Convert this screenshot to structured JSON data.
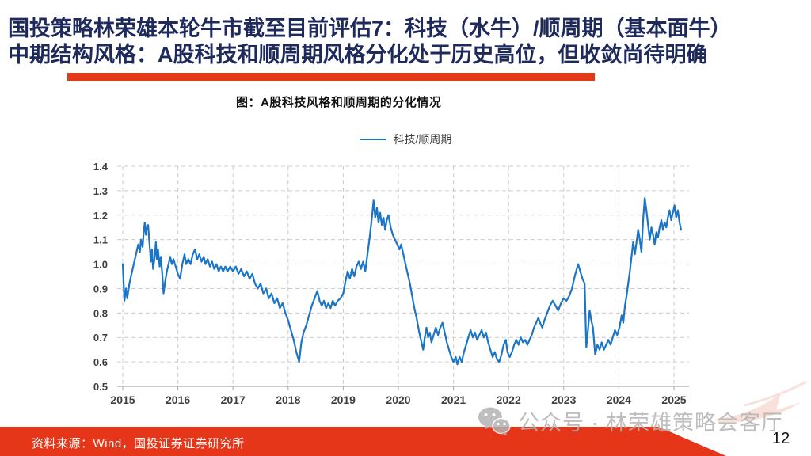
{
  "header": {
    "title_line1": "国投策略林荣雄本轮牛市截至目前评估7：科技（水牛）/顺周期（基本面牛）",
    "title_line2": "中期结构风格：A股科技和顺周期风格分化处于历史高位，但收敛尚待明确",
    "title_color": "#1f2a5c",
    "accent_color": "#e23a18"
  },
  "chart": {
    "title": "图：A股科技风格和顺周期的分化情况"
  },
  "chart_data": {
    "type": "line",
    "title": "图：A股科技风格和顺周期的分化情况",
    "xlabel": "",
    "ylabel": "",
    "xlim": [
      2015,
      2025.3
    ],
    "ylim": [
      0.5,
      1.4
    ],
    "x_ticks": [
      2015,
      2016,
      2017,
      2018,
      2019,
      2020,
      2021,
      2022,
      2023,
      2024,
      2025
    ],
    "y_ticks": [
      0.5,
      0.6,
      0.7,
      0.8,
      0.9,
      1.0,
      1.1,
      1.2,
      1.3,
      1.4
    ],
    "grid": "dashed",
    "legend_position": "top-center",
    "series": [
      {
        "name": "科技/顺周期",
        "color": "#1c75c4",
        "points": [
          [
            2015.0,
            1.0
          ],
          [
            2015.03,
            0.85
          ],
          [
            2015.06,
            0.9
          ],
          [
            2015.08,
            0.86
          ],
          [
            2015.12,
            0.92
          ],
          [
            2015.16,
            0.96
          ],
          [
            2015.2,
            1.0
          ],
          [
            2015.24,
            1.04
          ],
          [
            2015.28,
            1.08
          ],
          [
            2015.31,
            1.05
          ],
          [
            2015.33,
            1.1
          ],
          [
            2015.36,
            1.07
          ],
          [
            2015.38,
            1.13
          ],
          [
            2015.4,
            1.17
          ],
          [
            2015.42,
            1.12
          ],
          [
            2015.44,
            1.15
          ],
          [
            2015.46,
            1.16
          ],
          [
            2015.48,
            1.1
          ],
          [
            2015.51,
            1.01
          ],
          [
            2015.53,
            1.06
          ],
          [
            2015.55,
            0.98
          ],
          [
            2015.58,
            1.03
          ],
          [
            2015.6,
            1.09
          ],
          [
            2015.62,
            1.02
          ],
          [
            2015.64,
            1.06
          ],
          [
            2015.67,
            0.99
          ],
          [
            2015.69,
            1.03
          ],
          [
            2015.72,
            0.95
          ],
          [
            2015.74,
            0.88
          ],
          [
            2015.77,
            0.93
          ],
          [
            2015.8,
            0.97
          ],
          [
            2015.83,
            1.0
          ],
          [
            2015.86,
            1.03
          ],
          [
            2015.89,
            1.0
          ],
          [
            2015.92,
            1.02
          ],
          [
            2015.96,
            0.99
          ],
          [
            2016.0,
            0.96
          ],
          [
            2016.04,
            0.94
          ],
          [
            2016.08,
            1.0
          ],
          [
            2016.12,
            1.04
          ],
          [
            2016.15,
            1.0
          ],
          [
            2016.19,
            1.02
          ],
          [
            2016.23,
            1.0
          ],
          [
            2016.27,
            1.04
          ],
          [
            2016.31,
            1.06
          ],
          [
            2016.35,
            1.02
          ],
          [
            2016.39,
            1.04
          ],
          [
            2016.43,
            1.01
          ],
          [
            2016.47,
            1.03
          ],
          [
            2016.5,
            1.0
          ],
          [
            2016.54,
            1.02
          ],
          [
            2016.58,
            0.99
          ],
          [
            2016.62,
            1.01
          ],
          [
            2016.66,
            0.98
          ],
          [
            2016.7,
            1.0
          ],
          [
            2016.74,
            0.97
          ],
          [
            2016.78,
            0.99
          ],
          [
            2016.82,
            0.97
          ],
          [
            2016.86,
            0.99
          ],
          [
            2016.9,
            0.97
          ],
          [
            2016.95,
            0.99
          ],
          [
            2017.0,
            0.97
          ],
          [
            2017.05,
            0.99
          ],
          [
            2017.1,
            0.96
          ],
          [
            2017.15,
            0.98
          ],
          [
            2017.2,
            0.95
          ],
          [
            2017.25,
            0.97
          ],
          [
            2017.3,
            0.94
          ],
          [
            2017.35,
            0.96
          ],
          [
            2017.4,
            0.92
          ],
          [
            2017.45,
            0.9
          ],
          [
            2017.5,
            0.92
          ],
          [
            2017.55,
            0.88
          ],
          [
            2017.6,
            0.9
          ],
          [
            2017.65,
            0.86
          ],
          [
            2017.7,
            0.88
          ],
          [
            2017.75,
            0.84
          ],
          [
            2017.8,
            0.86
          ],
          [
            2017.85,
            0.82
          ],
          [
            2017.9,
            0.84
          ],
          [
            2017.95,
            0.8
          ],
          [
            2018.0,
            0.77
          ],
          [
            2018.05,
            0.73
          ],
          [
            2018.1,
            0.69
          ],
          [
            2018.15,
            0.64
          ],
          [
            2018.2,
            0.6
          ],
          [
            2018.24,
            0.68
          ],
          [
            2018.28,
            0.72
          ],
          [
            2018.33,
            0.75
          ],
          [
            2018.38,
            0.79
          ],
          [
            2018.43,
            0.83
          ],
          [
            2018.48,
            0.86
          ],
          [
            2018.53,
            0.89
          ],
          [
            2018.57,
            0.85
          ],
          [
            2018.61,
            0.83
          ],
          [
            2018.65,
            0.85
          ],
          [
            2018.69,
            0.82
          ],
          [
            2018.73,
            0.84
          ],
          [
            2018.77,
            0.82
          ],
          [
            2018.81,
            0.85
          ],
          [
            2018.85,
            0.83
          ],
          [
            2018.9,
            0.85
          ],
          [
            2018.95,
            0.86
          ],
          [
            2019.0,
            0.88
          ],
          [
            2019.04,
            0.93
          ],
          [
            2019.08,
            0.97
          ],
          [
            2019.12,
            0.94
          ],
          [
            2019.16,
            0.98
          ],
          [
            2019.2,
            0.95
          ],
          [
            2019.24,
            0.99
          ],
          [
            2019.28,
            1.01
          ],
          [
            2019.32,
            0.98
          ],
          [
            2019.36,
            1.01
          ],
          [
            2019.4,
            0.97
          ],
          [
            2019.44,
            1.04
          ],
          [
            2019.48,
            1.11
          ],
          [
            2019.52,
            1.19
          ],
          [
            2019.55,
            1.26
          ],
          [
            2019.58,
            1.19
          ],
          [
            2019.61,
            1.23
          ],
          [
            2019.64,
            1.17
          ],
          [
            2019.67,
            1.21
          ],
          [
            2019.7,
            1.16
          ],
          [
            2019.73,
            1.19
          ],
          [
            2019.76,
            1.14
          ],
          [
            2019.79,
            1.18
          ],
          [
            2019.82,
            1.2
          ],
          [
            2019.86,
            1.15
          ],
          [
            2019.9,
            1.12
          ],
          [
            2019.94,
            1.1
          ],
          [
            2019.98,
            1.08
          ],
          [
            2020.02,
            1.06
          ],
          [
            2020.05,
            1.08
          ],
          [
            2020.09,
            1.04
          ],
          [
            2020.13,
            1.0
          ],
          [
            2020.17,
            0.96
          ],
          [
            2020.21,
            0.92
          ],
          [
            2020.25,
            0.87
          ],
          [
            2020.29,
            0.82
          ],
          [
            2020.33,
            0.78
          ],
          [
            2020.37,
            0.73
          ],
          [
            2020.41,
            0.69
          ],
          [
            2020.45,
            0.65
          ],
          [
            2020.48,
            0.7
          ],
          [
            2020.51,
            0.74
          ],
          [
            2020.54,
            0.7
          ],
          [
            2020.57,
            0.72
          ],
          [
            2020.6,
            0.68
          ],
          [
            2020.64,
            0.71
          ],
          [
            2020.68,
            0.74
          ],
          [
            2020.72,
            0.71
          ],
          [
            2020.76,
            0.74
          ],
          [
            2020.8,
            0.76
          ],
          [
            2020.84,
            0.72
          ],
          [
            2020.88,
            0.68
          ],
          [
            2020.92,
            0.65
          ],
          [
            2020.96,
            0.62
          ],
          [
            2021.0,
            0.6
          ],
          [
            2021.04,
            0.62
          ],
          [
            2021.07,
            0.59
          ],
          [
            2021.11,
            0.62
          ],
          [
            2021.15,
            0.6
          ],
          [
            2021.19,
            0.64
          ],
          [
            2021.23,
            0.67
          ],
          [
            2021.27,
            0.7
          ],
          [
            2021.31,
            0.73
          ],
          [
            2021.35,
            0.7
          ],
          [
            2021.39,
            0.72
          ],
          [
            2021.43,
            0.69
          ],
          [
            2021.47,
            0.71
          ],
          [
            2021.51,
            0.73
          ],
          [
            2021.55,
            0.7
          ],
          [
            2021.59,
            0.72
          ],
          [
            2021.63,
            0.68
          ],
          [
            2021.67,
            0.65
          ],
          [
            2021.71,
            0.62
          ],
          [
            2021.75,
            0.64
          ],
          [
            2021.79,
            0.61
          ],
          [
            2021.83,
            0.6
          ],
          [
            2021.87,
            0.63
          ],
          [
            2021.91,
            0.67
          ],
          [
            2021.95,
            0.69
          ],
          [
            2021.98,
            0.64
          ],
          [
            2022.02,
            0.62
          ],
          [
            2022.06,
            0.64
          ],
          [
            2022.1,
            0.67
          ],
          [
            2022.14,
            0.69
          ],
          [
            2022.18,
            0.67
          ],
          [
            2022.22,
            0.7
          ],
          [
            2022.26,
            0.68
          ],
          [
            2022.3,
            0.69
          ],
          [
            2022.34,
            0.67
          ],
          [
            2022.38,
            0.69
          ],
          [
            2022.42,
            0.71
          ],
          [
            2022.46,
            0.74
          ],
          [
            2022.5,
            0.76
          ],
          [
            2022.54,
            0.78
          ],
          [
            2022.57,
            0.76
          ],
          [
            2022.61,
            0.74
          ],
          [
            2022.65,
            0.77
          ],
          [
            2022.7,
            0.8
          ],
          [
            2022.75,
            0.83
          ],
          [
            2022.8,
            0.85
          ],
          [
            2022.85,
            0.83
          ],
          [
            2022.9,
            0.81
          ],
          [
            2022.95,
            0.84
          ],
          [
            2023.0,
            0.86
          ],
          [
            2023.05,
            0.85
          ],
          [
            2023.1,
            0.87
          ],
          [
            2023.15,
            0.9
          ],
          [
            2023.2,
            0.95
          ],
          [
            2023.26,
            1.0
          ],
          [
            2023.3,
            0.97
          ],
          [
            2023.34,
            0.94
          ],
          [
            2023.38,
            0.92
          ],
          [
            2023.41,
            0.66
          ],
          [
            2023.44,
            0.73
          ],
          [
            2023.47,
            0.81
          ],
          [
            2023.5,
            0.77
          ],
          [
            2023.53,
            0.74
          ],
          [
            2023.57,
            0.63
          ],
          [
            2023.61,
            0.67
          ],
          [
            2023.65,
            0.65
          ],
          [
            2023.69,
            0.68
          ],
          [
            2023.73,
            0.65
          ],
          [
            2023.77,
            0.67
          ],
          [
            2023.81,
            0.69
          ],
          [
            2023.85,
            0.67
          ],
          [
            2023.89,
            0.7
          ],
          [
            2023.93,
            0.73
          ],
          [
            2023.97,
            0.71
          ],
          [
            2024.01,
            0.74
          ],
          [
            2024.05,
            0.79
          ],
          [
            2024.08,
            0.76
          ],
          [
            2024.11,
            0.83
          ],
          [
            2024.14,
            0.87
          ],
          [
            2024.17,
            0.92
          ],
          [
            2024.2,
            0.97
          ],
          [
            2024.23,
            1.03
          ],
          [
            2024.26,
            1.09
          ],
          [
            2024.29,
            1.04
          ],
          [
            2024.32,
            1.09
          ],
          [
            2024.35,
            1.14
          ],
          [
            2024.38,
            1.1
          ],
          [
            2024.41,
            1.05
          ],
          [
            2024.44,
            1.18
          ],
          [
            2024.47,
            1.27
          ],
          [
            2024.5,
            1.22
          ],
          [
            2024.53,
            1.16
          ],
          [
            2024.56,
            1.1
          ],
          [
            2024.59,
            1.15
          ],
          [
            2024.62,
            1.12
          ],
          [
            2024.65,
            1.08
          ],
          [
            2024.68,
            1.13
          ],
          [
            2024.71,
            1.11
          ],
          [
            2024.74,
            1.15
          ],
          [
            2024.77,
            1.18
          ],
          [
            2024.8,
            1.14
          ],
          [
            2024.83,
            1.17
          ],
          [
            2024.86,
            1.15
          ],
          [
            2024.89,
            1.19
          ],
          [
            2024.92,
            1.22
          ],
          [
            2024.95,
            1.18
          ],
          [
            2024.98,
            1.21
          ],
          [
            2025.01,
            1.24
          ],
          [
            2025.04,
            1.19
          ],
          [
            2025.07,
            1.22
          ],
          [
            2025.1,
            1.17
          ],
          [
            2025.13,
            1.14
          ]
        ]
      }
    ]
  },
  "footer": {
    "source_text": "资料来源：Wind，国投证券证券研究所",
    "page_number": "12",
    "band_color": "#e5361a"
  },
  "watermark": {
    "text": "公众号 · 林荣雄策略会客厅",
    "icon": "wechat-icon"
  }
}
